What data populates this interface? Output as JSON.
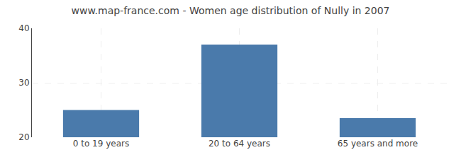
{
  "chart_data": {
    "type": "bar",
    "title": "www.map-france.com - Women age distribution of Nully in 2007",
    "categories": [
      "0 to 19 years",
      "20 to 64 years",
      "65 years and more"
    ],
    "values": [
      25,
      37,
      23.5
    ],
    "color": "#4a7aab",
    "ylim": [
      20,
      40
    ],
    "yticks": [
      20,
      30,
      40
    ],
    "grid": true
  }
}
